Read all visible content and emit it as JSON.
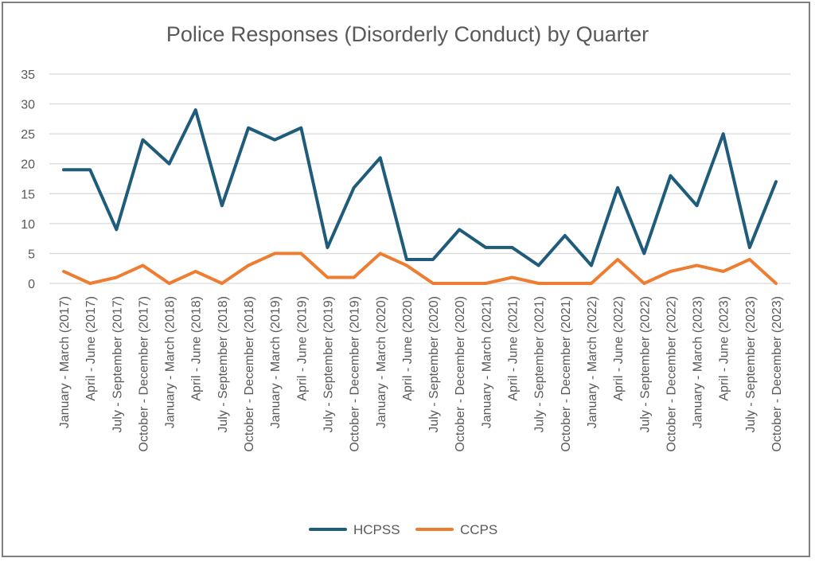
{
  "chart_data": {
    "type": "line",
    "title": "Police Responses (Disorderly Conduct) by Quarter",
    "xlabel": "",
    "ylabel": "",
    "ylim": [
      0,
      35
    ],
    "yticks": [
      "0",
      "5",
      "10",
      "15",
      "20",
      "25",
      "30",
      "35"
    ],
    "grid": true,
    "legend_position": "bottom",
    "categories": [
      "January - March (2017)",
      "April - June (2017)",
      "July - September (2017)",
      "October - December (2017)",
      "January - March (2018)",
      "April - June (2018)",
      "July - September (2018)",
      "October - December (2018)",
      "January - March (2019)",
      "April - June (2019)",
      "July - September (2019)",
      "October - December (2019)",
      "January - March (2020)",
      "April - June (2020)",
      "July - September (2020)",
      "October - December (2020)",
      "January - March (2021)",
      "April - June (2021)",
      "July - September (2021)",
      "October - December (2021)",
      "January - March (2022)",
      "April - June (2022)",
      "July - September (2022)",
      "October - December (2022)",
      "January - March (2023)",
      "April - June (2023)",
      "July - September (2023)",
      "October - December (2023)"
    ],
    "series": [
      {
        "name": "HCPSS",
        "color": "#1f5b7a",
        "values": [
          19,
          19,
          9,
          24,
          20,
          29,
          13,
          26,
          24,
          26,
          6,
          16,
          21,
          4,
          4,
          9,
          6,
          6,
          3,
          8,
          3,
          16,
          5,
          18,
          13,
          25,
          6,
          17
        ]
      },
      {
        "name": "CCPS",
        "color": "#ed7d31",
        "values": [
          2,
          0,
          1,
          3,
          0,
          2,
          0,
          3,
          5,
          5,
          1,
          1,
          5,
          3,
          0,
          0,
          0,
          1,
          0,
          0,
          0,
          4,
          0,
          2,
          3,
          2,
          4,
          0
        ]
      }
    ]
  }
}
